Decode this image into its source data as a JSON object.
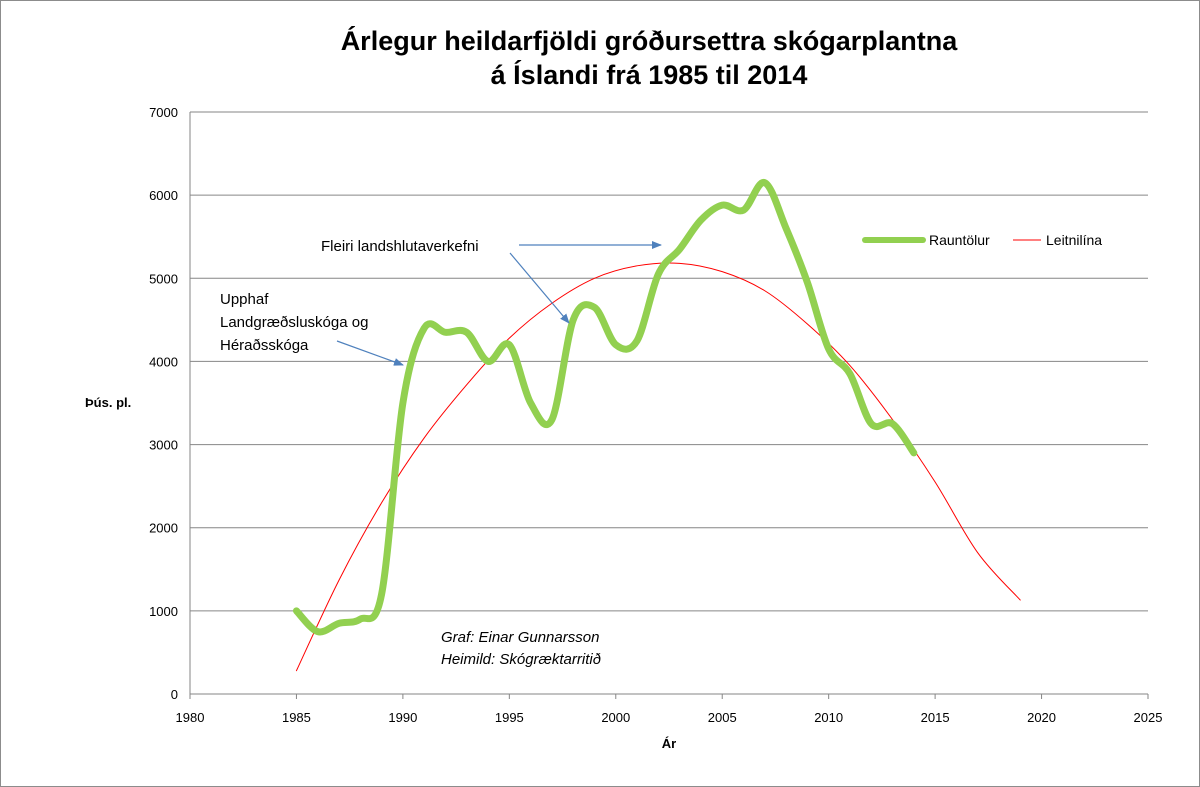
{
  "chart_data": {
    "type": "line",
    "title": [
      "Árlegur heildarfjöldi gróðursettra skógarplantna",
      "á Íslandi frá 1985 til 2014"
    ],
    "xlabel": "Ár",
    "ylabel": "Þús. pl.",
    "xlim": [
      1980,
      2025
    ],
    "ylim": [
      0,
      7000
    ],
    "xticks": [
      1980,
      1985,
      1990,
      1995,
      2000,
      2005,
      2010,
      2015,
      2020,
      2025
    ],
    "yticks": [
      0,
      1000,
      2000,
      3000,
      4000,
      5000,
      6000,
      7000
    ],
    "grid": "horizontal",
    "legend_position": "top-right",
    "series": [
      {
        "name": "Rauntölur",
        "color": "#92d050",
        "smooth": true,
        "x": [
          1985,
          1986,
          1987,
          1988,
          1989,
          1990,
          1991,
          1992,
          1993,
          1994,
          1995,
          1996,
          1997,
          1998,
          1999,
          2000,
          2001,
          2002,
          2003,
          2004,
          2005,
          2006,
          2007,
          2008,
          2009,
          2010,
          2011,
          2012,
          2013,
          2014
        ],
        "y": [
          1000,
          750,
          850,
          900,
          1200,
          3500,
          4400,
          4350,
          4350,
          4000,
          4200,
          3500,
          3300,
          4500,
          4650,
          4200,
          4250,
          5050,
          5350,
          5700,
          5880,
          5820,
          6150,
          5600,
          4950,
          4150,
          3850,
          3250,
          3250,
          2900
        ]
      },
      {
        "name": "Leitnilína",
        "color": "#ff0000",
        "type": "polynomial-trend",
        "x": [
          1985,
          1987,
          1989,
          1991,
          1993,
          1995,
          1997,
          1999,
          2001,
          2003,
          2005,
          2007,
          2009,
          2011,
          2013,
          2015,
          2017,
          2019
        ],
        "y": [
          280,
          1370,
          2300,
          3080,
          3720,
          4280,
          4700,
          5000,
          5150,
          5180,
          5080,
          4850,
          4450,
          3950,
          3300,
          2550,
          1700,
          1130
        ]
      }
    ],
    "annotations": [
      {
        "lines": [
          "Upphaf",
          "Landgræðsluskóga og",
          "Héraðsskóga"
        ]
      },
      {
        "lines": [
          "Fleiri landshlutaverkefni"
        ]
      }
    ],
    "credits": [
      "Graf: Einar Gunnarsson",
      "Heimild: Skógræktarritið"
    ]
  }
}
